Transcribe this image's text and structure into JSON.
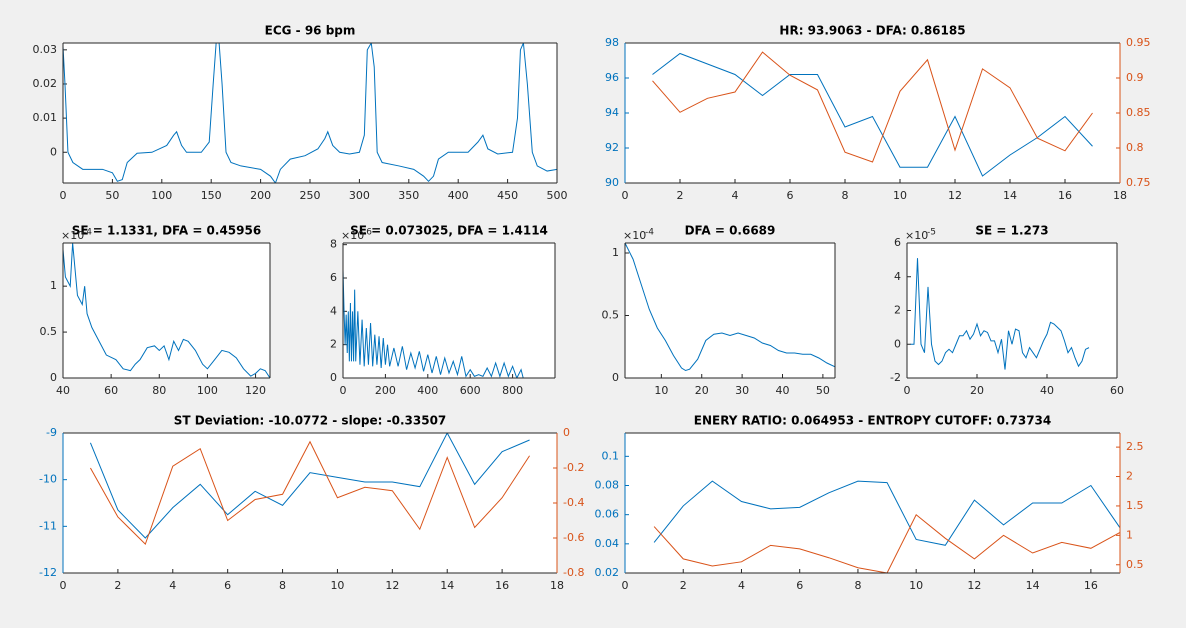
{
  "chart_data": [
    {
      "type": "line",
      "title": "ECG - 96 bpm",
      "x": [
        0,
        2,
        5,
        10,
        20,
        40,
        50,
        55,
        60,
        65,
        75,
        90,
        105,
        112,
        115,
        120,
        125,
        140,
        148,
        152,
        155,
        158,
        161,
        165,
        170,
        180,
        200,
        210,
        215,
        220,
        230,
        245,
        258,
        265,
        268,
        273,
        280,
        290,
        300,
        305,
        308,
        312,
        315,
        318,
        323,
        340,
        355,
        365,
        370,
        375,
        380,
        390,
        410,
        420,
        425,
        430,
        440,
        455,
        460,
        463,
        466,
        470,
        475,
        480,
        490,
        500
      ],
      "series": [
        {
          "color": "#0072bd",
          "values": [
            0.031,
            0.02,
            0.0,
            -0.003,
            -0.005,
            -0.005,
            -0.006,
            -0.0085,
            -0.008,
            -0.003,
            -0.0003,
            0.0,
            0.002,
            0.005,
            0.006,
            0.002,
            0.0,
            0.0,
            0.003,
            0.02,
            0.032,
            0.032,
            0.02,
            0.0,
            -0.003,
            -0.004,
            -0.005,
            -0.007,
            -0.009,
            -0.005,
            -0.002,
            -0.001,
            0.001,
            0.004,
            0.006,
            0.002,
            0.0,
            -0.0005,
            0.0,
            0.005,
            0.03,
            0.032,
            0.025,
            0.0,
            -0.003,
            -0.004,
            -0.005,
            -0.007,
            -0.0085,
            -0.007,
            -0.002,
            0.0,
            0.0,
            0.003,
            0.005,
            0.001,
            -0.0005,
            0.0,
            0.01,
            0.03,
            0.032,
            0.02,
            0.0,
            -0.004,
            -0.0055,
            -0.005
          ]
        }
      ],
      "xlim": [
        0,
        500
      ],
      "xticks": [
        0,
        50,
        100,
        150,
        200,
        250,
        300,
        350,
        400,
        450,
        500
      ],
      "ylim": [
        -0.009,
        0.032
      ],
      "yticks": [
        0,
        0.01,
        0.02,
        0.03
      ]
    },
    {
      "type": "line",
      "title": "HR: 93.9063 - DFA: 0.86185",
      "x": [
        1,
        2,
        3,
        4,
        5,
        6,
        7,
        8,
        9,
        10,
        11,
        12,
        13,
        14,
        15,
        16,
        17
      ],
      "series": [
        {
          "color": "#0072bd",
          "values": [
            96.2,
            97.4,
            96.8,
            96.2,
            95.0,
            96.2,
            96.2,
            93.2,
            93.8,
            90.9,
            90.9,
            93.8,
            90.4,
            91.6,
            92.6,
            93.8,
            92.1
          ]
        },
        {
          "color": "#d95319",
          "axis": "y2",
          "values": [
            0.896,
            0.851,
            0.871,
            0.88,
            0.937,
            0.904,
            0.883,
            0.794,
            0.78,
            0.881,
            0.926,
            0.797,
            0.913,
            0.886,
            0.814,
            0.796,
            0.85
          ]
        }
      ],
      "xlim": [
        0,
        18
      ],
      "xticks": [
        0,
        2,
        4,
        6,
        8,
        10,
        12,
        14,
        16,
        18
      ],
      "ylim": [
        90,
        98
      ],
      "yticks": [
        90,
        92,
        94,
        96,
        98
      ],
      "y2lim": [
        0.75,
        0.95
      ],
      "y2ticks": [
        0.75,
        0.8,
        0.85,
        0.9,
        0.95
      ]
    },
    {
      "type": "line",
      "title": "SE = 1.1331, DFA = 0.45956",
      "y_exponent_base": "×10",
      "y_exponent": "-4",
      "x": [
        40,
        41,
        43,
        44,
        46,
        48,
        49,
        50,
        52,
        55,
        58,
        62,
        65,
        68,
        70,
        72,
        75,
        78,
        80,
        82,
        84,
        86,
        88,
        90,
        92,
        95,
        98,
        100,
        103,
        106,
        109,
        112,
        115,
        118,
        120,
        122,
        124,
        126
      ],
      "series": [
        {
          "color": "#0072bd",
          "values": [
            1.4,
            1.1,
            1.0,
            1.47,
            0.9,
            0.8,
            1.0,
            0.7,
            0.55,
            0.4,
            0.25,
            0.2,
            0.1,
            0.08,
            0.15,
            0.2,
            0.33,
            0.35,
            0.3,
            0.35,
            0.2,
            0.4,
            0.3,
            0.42,
            0.4,
            0.3,
            0.15,
            0.1,
            0.2,
            0.3,
            0.28,
            0.22,
            0.1,
            0.02,
            0.05,
            0.1,
            0.08,
            0.0
          ]
        }
      ],
      "xlim": [
        40,
        126
      ],
      "xticks": [
        40,
        60,
        80,
        100,
        120
      ],
      "ylim": [
        0,
        1.47
      ],
      "yticks": [
        0,
        0.5,
        1
      ]
    },
    {
      "type": "line",
      "title": "SE = 0.073025, DFA = 1.4114",
      "y_exponent_base": "×10",
      "y_exponent": "-6",
      "x": [
        0,
        5,
        10,
        15,
        20,
        25,
        30,
        35,
        40,
        45,
        50,
        55,
        60,
        70,
        80,
        90,
        100,
        110,
        120,
        130,
        140,
        150,
        160,
        170,
        180,
        190,
        200,
        210,
        220,
        240,
        260,
        280,
        300,
        320,
        340,
        360,
        380,
        400,
        420,
        440,
        460,
        480,
        500,
        520,
        540,
        560,
        580,
        600,
        620,
        640,
        660,
        680,
        700,
        720,
        740,
        760,
        780,
        800,
        820,
        840,
        850
      ],
      "series": [
        {
          "color": "#0072bd",
          "values": [
            6.5,
            4,
            2,
            3.8,
            1.5,
            4,
            1,
            4.5,
            1,
            4,
            1,
            5.3,
            1,
            4,
            0.8,
            3.5,
            0.7,
            3,
            0.8,
            3.3,
            0.7,
            2.6,
            0.8,
            2.5,
            0.6,
            2.4,
            0.8,
            2,
            0.7,
            1.8,
            0.7,
            1.9,
            0.5,
            1.5,
            0.6,
            1.6,
            0.4,
            1.4,
            0.3,
            1.3,
            0.2,
            1.2,
            0.3,
            1.0,
            0.2,
            1.3,
            0.1,
            0.5,
            0.1,
            0.2,
            0.1,
            0.6,
            0.1,
            0.9,
            0.1,
            0.9,
            0.1,
            0.7,
            0.0,
            0.5,
            0.0
          ]
        }
      ],
      "xlim": [
        0,
        1000
      ],
      "xticks": [
        0,
        200,
        400,
        600,
        800
      ],
      "ylim": [
        0,
        8.1
      ],
      "yticks": [
        0,
        2,
        4,
        6,
        8
      ]
    },
    {
      "type": "line",
      "title": "DFA = 0.6689",
      "y_exponent_base": "×10",
      "y_exponent": "-4",
      "x": [
        1,
        3,
        5,
        7,
        9,
        11,
        13,
        15,
        16,
        17,
        19,
        21,
        23,
        25,
        27,
        29,
        31,
        33,
        35,
        37,
        39,
        41,
        43,
        45,
        47,
        49,
        51,
        53
      ],
      "series": [
        {
          "color": "#0072bd",
          "values": [
            1.08,
            0.95,
            0.75,
            0.55,
            0.4,
            0.3,
            0.18,
            0.08,
            0.06,
            0.07,
            0.15,
            0.3,
            0.35,
            0.36,
            0.34,
            0.36,
            0.34,
            0.32,
            0.28,
            0.26,
            0.22,
            0.2,
            0.2,
            0.19,
            0.19,
            0.16,
            0.12,
            0.09
          ]
        }
      ],
      "xlim": [
        1,
        53
      ],
      "xticks": [
        10,
        20,
        30,
        40,
        50
      ],
      "ylim": [
        0,
        1.08
      ],
      "yticks": [
        0,
        0.5,
        1
      ]
    },
    {
      "type": "line",
      "title": "SE = 1.273",
      "y_exponent_base": "×10",
      "y_exponent": "-5",
      "x": [
        1,
        2,
        3,
        4,
        5,
        6,
        7,
        8,
        9,
        10,
        11,
        12,
        13,
        14,
        15,
        16,
        17,
        18,
        19,
        20,
        21,
        22,
        23,
        24,
        25,
        26,
        27,
        28,
        29,
        30,
        31,
        32,
        33,
        34,
        35,
        36,
        37,
        38,
        39,
        40,
        41,
        42,
        43,
        44,
        45,
        46,
        47,
        48,
        49,
        50,
        51,
        52
      ],
      "series": [
        {
          "color": "#0072bd",
          "values": [
            0,
            0,
            5.1,
            0,
            -0.5,
            3.4,
            0,
            -1,
            -1.2,
            -1,
            -0.5,
            -0.3,
            -0.5,
            0,
            0.5,
            0.5,
            0.8,
            0.3,
            0.6,
            1.2,
            0.5,
            0.8,
            0.7,
            0.2,
            0.2,
            -0.5,
            0.3,
            -1.5,
            0.8,
            0,
            0.9,
            0.8,
            -0.5,
            -0.8,
            -0.2,
            -0.5,
            -0.8,
            -0.3,
            0.2,
            0.6,
            1.3,
            1.2,
            1.0,
            0.8,
            0.2,
            -0.5,
            -0.2,
            -0.8,
            -1.3,
            -1.0,
            -0.3,
            -0.2
          ]
        }
      ],
      "xlim": [
        0,
        60
      ],
      "xticks": [
        0,
        20,
        40,
        60
      ],
      "ylim": [
        -2,
        6
      ],
      "yticks": [
        -2,
        0,
        2,
        4,
        6
      ]
    },
    {
      "type": "line",
      "title": "ST Deviation: -10.0772 - slope: -0.33507",
      "x": [
        1,
        2,
        3,
        4,
        5,
        6,
        7,
        8,
        9,
        10,
        11,
        12,
        13,
        14,
        15,
        16,
        17
      ],
      "series": [
        {
          "color": "#0072bd",
          "values": [
            -9.21,
            -10.65,
            -11.25,
            -10.6,
            -10.1,
            -10.75,
            -10.25,
            -10.55,
            -9.85,
            -9.95,
            -10.05,
            -10.05,
            -10.15,
            -9.0,
            -10.1,
            -9.4,
            -9.15
          ]
        },
        {
          "color": "#d95319",
          "axis": "y2",
          "values": [
            -0.2,
            -0.48,
            -0.635,
            -0.19,
            -0.09,
            -0.5,
            -0.38,
            -0.35,
            -0.05,
            -0.37,
            -0.31,
            -0.33,
            -0.55,
            -0.14,
            -0.54,
            -0.37,
            -0.13
          ]
        }
      ],
      "xlim": [
        0,
        18
      ],
      "xticks": [
        0,
        2,
        4,
        6,
        8,
        10,
        12,
        14,
        16,
        18
      ],
      "ylim": [
        -12,
        -9
      ],
      "yticks": [
        -12,
        -11,
        -10,
        -9
      ],
      "y2lim": [
        -0.8,
        0
      ],
      "y2ticks": [
        -0.8,
        -0.6,
        -0.4,
        -0.2,
        0
      ]
    },
    {
      "type": "line",
      "title": "ENERY RATIO: 0.064953 - ENTROPY CUTOFF: 0.73734",
      "x": [
        1,
        2,
        3,
        4,
        5,
        6,
        7,
        8,
        9,
        10,
        11,
        12,
        13,
        14,
        15,
        16,
        17
      ],
      "series": [
        {
          "color": "#0072bd",
          "values": [
            0.041,
            0.066,
            0.083,
            0.069,
            0.064,
            0.065,
            0.075,
            0.083,
            0.082,
            0.043,
            0.039,
            0.07,
            0.053,
            0.068,
            0.068,
            0.08,
            0.051
          ]
        },
        {
          "color": "#d95319",
          "axis": "y2",
          "values": [
            1.15,
            0.6,
            0.48,
            0.55,
            0.83,
            0.77,
            0.62,
            0.45,
            0.36,
            1.35,
            0.95,
            0.6,
            1.0,
            0.7,
            0.88,
            0.78,
            1.05
          ]
        }
      ],
      "xlim": [
        0,
        17
      ],
      "xticks": [
        0,
        2,
        4,
        6,
        8,
        10,
        12,
        14,
        16
      ],
      "ylim": [
        0.02,
        0.116
      ],
      "yticks": [
        0.02,
        0.04,
        0.06,
        0.08,
        0.1
      ],
      "y2lim": [
        0.36,
        2.74
      ],
      "y2ticks": [
        0.5,
        1,
        1.5,
        2,
        2.5
      ]
    }
  ]
}
